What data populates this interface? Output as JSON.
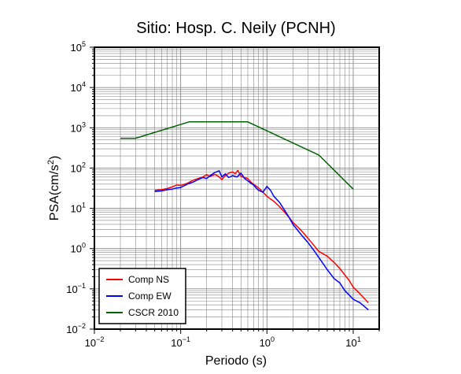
{
  "chart_data": {
    "type": "line",
    "title": "Sitio: Hosp. C. Neily (PCNH)",
    "xlabel": "Periodo (s)",
    "ylabel_base": "PSA(cm/s",
    "ylabel_sup": "2",
    "ylabel_end": ")",
    "x_scale": "log",
    "y_scale": "log",
    "xlim": [
      0.01,
      20
    ],
    "ylim": [
      0.01,
      100000
    ],
    "grid": true,
    "legend_position": "bottom-left",
    "x_ticks": [
      {
        "value": 0.01,
        "base": "10",
        "exp": "−2"
      },
      {
        "value": 0.1,
        "base": "10",
        "exp": "−1"
      },
      {
        "value": 1,
        "base": "10",
        "exp": "0"
      },
      {
        "value": 10,
        "base": "10",
        "exp": "1"
      }
    ],
    "y_ticks": [
      {
        "value": 0.01,
        "base": "10",
        "exp": "−2"
      },
      {
        "value": 0.1,
        "base": "10",
        "exp": "−1"
      },
      {
        "value": 1,
        "base": "10",
        "exp": "0"
      },
      {
        "value": 10,
        "base": "10",
        "exp": "1"
      },
      {
        "value": 100,
        "base": "10",
        "exp": "2"
      },
      {
        "value": 1000,
        "base": "10",
        "exp": "3"
      },
      {
        "value": 10000,
        "base": "10",
        "exp": "4"
      },
      {
        "value": 100000,
        "base": "10",
        "exp": "5"
      }
    ],
    "series": [
      {
        "name": "Comp NS",
        "color": "#ff0000",
        "x": [
          0.05,
          0.06,
          0.07,
          0.08,
          0.09,
          0.1,
          0.12,
          0.14,
          0.16,
          0.18,
          0.2,
          0.22,
          0.25,
          0.28,
          0.3,
          0.33,
          0.36,
          0.4,
          0.43,
          0.46,
          0.5,
          0.55,
          0.6,
          0.65,
          0.7,
          0.8,
          0.9,
          1.0,
          1.1,
          1.2,
          1.4,
          1.6,
          1.8,
          2.0,
          2.5,
          3.0,
          3.5,
          4.0,
          5.0,
          6.0,
          7.0,
          8.0,
          9.0,
          10.0,
          12.0,
          15.0
        ],
        "y": [
          28,
          29,
          31,
          34,
          38,
          37,
          42,
          50,
          55,
          60,
          68,
          62,
          70,
          60,
          52,
          65,
          75,
          80,
          72,
          88,
          62,
          58,
          55,
          45,
          40,
          32,
          25,
          20,
          17,
          15,
          11,
          8,
          6,
          4.5,
          2.8,
          1.8,
          1.2,
          0.85,
          0.65,
          0.45,
          0.32,
          0.22,
          0.16,
          0.11,
          0.075,
          0.045
        ]
      },
      {
        "name": "Comp EW",
        "color": "#0000ff",
        "x": [
          0.05,
          0.06,
          0.07,
          0.08,
          0.09,
          0.1,
          0.12,
          0.14,
          0.16,
          0.18,
          0.2,
          0.22,
          0.25,
          0.28,
          0.3,
          0.33,
          0.36,
          0.4,
          0.45,
          0.5,
          0.55,
          0.6,
          0.65,
          0.7,
          0.75,
          0.8,
          0.9,
          1.0,
          1.1,
          1.2,
          1.4,
          1.6,
          1.8,
          2.0,
          2.5,
          3.0,
          3.5,
          4.0,
          5.0,
          6.0,
          7.0,
          8.0,
          9.0,
          10.0,
          12.0,
          15.0
        ],
        "y": [
          26,
          27,
          29,
          30,
          32,
          33,
          40,
          45,
          52,
          58,
          55,
          65,
          78,
          85,
          60,
          72,
          58,
          65,
          60,
          75,
          55,
          48,
          42,
          38,
          32,
          28,
          25,
          35,
          28,
          20,
          14,
          9,
          6,
          4,
          2.2,
          1.4,
          0.9,
          0.6,
          0.3,
          0.18,
          0.14,
          0.09,
          0.07,
          0.055,
          0.045,
          0.03
        ]
      },
      {
        "name": "CSCR 2010",
        "color": "#006400",
        "x": [
          0.02,
          0.03,
          0.125,
          0.6,
          4.0,
          10.0
        ],
        "y": [
          550,
          550,
          1400,
          1400,
          210,
          30
        ]
      }
    ]
  }
}
